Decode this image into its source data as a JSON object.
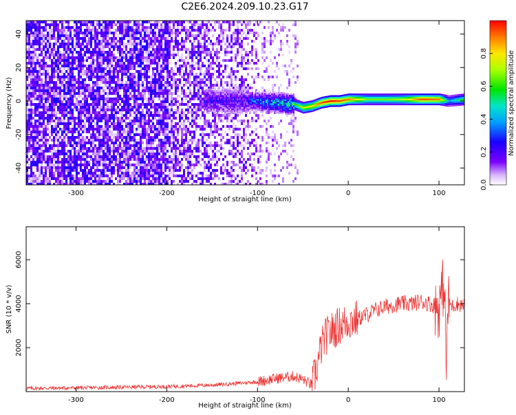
{
  "figure_title": "C2E6.2024.209.10.23.G17",
  "chart_data": [
    {
      "type": "heatmap",
      "title": "",
      "xlabel": "Height of straight line (km)",
      "ylabel": "Frequency (Hz)",
      "xlim": [
        -355,
        128
      ],
      "ylim": [
        -50,
        48
      ],
      "xticks": [
        -300,
        -200,
        -100,
        0,
        100
      ],
      "yticks": [
        -40,
        -20,
        0,
        20,
        40
      ],
      "colorbar": {
        "label": "Normalized spectral amplitude",
        "range": [
          0.0,
          1.0
        ],
        "ticks": [
          0.0,
          0.2,
          0.4,
          0.6,
          0.8
        ],
        "colormap": "rainbow (violet to red)"
      },
      "signal_track": {
        "x": [
          -110,
          -80,
          -60,
          -50,
          -40,
          -30,
          -20,
          -10,
          0,
          20,
          40,
          60,
          80,
          100,
          110,
          128
        ],
        "frequency": [
          0,
          -1,
          -2,
          -4,
          -3,
          -1,
          0,
          0,
          1,
          1,
          1,
          1,
          1,
          1,
          0,
          1
        ],
        "amplitude": [
          0.3,
          0.45,
          0.55,
          0.75,
          0.8,
          0.95,
          1.0,
          0.95,
          0.9,
          0.65,
          0.65,
          0.7,
          0.95,
          0.9,
          0.4,
          0.6
        ]
      },
      "noise_region": {
        "x_range": [
          -355,
          -55
        ],
        "amplitude_range": [
          0.0,
          0.3
        ]
      }
    },
    {
      "type": "line",
      "title": "",
      "xlabel": "Height of straight line (km)",
      "ylabel": "SNR (10 * v/v)",
      "xlim": [
        -355,
        128
      ],
      "ylim": [
        0,
        7500
      ],
      "xticks": [
        -300,
        -200,
        -100,
        0,
        100
      ],
      "yticks": [
        2000,
        4000,
        6000
      ],
      "color": "#ee3333",
      "series": [
        {
          "x": [
            -355,
            -300,
            -250,
            -200,
            -150,
            -120,
            -100,
            -80,
            -60,
            -50,
            -40,
            -35,
            -30,
            -25,
            -20,
            -10,
            0,
            10,
            20,
            30,
            40,
            50,
            60,
            70,
            80,
            90,
            100,
            103,
            106,
            108,
            110,
            115,
            120,
            128
          ],
          "y": [
            150,
            170,
            200,
            230,
            300,
            380,
            450,
            600,
            700,
            550,
            300,
            1000,
            2000,
            2500,
            2700,
            3000,
            3200,
            3300,
            3500,
            3700,
            3850,
            3950,
            4000,
            4000,
            4100,
            4000,
            3800,
            4500,
            5000,
            1000,
            4000,
            3900,
            4000,
            3900
          ]
        }
      ]
    }
  ]
}
